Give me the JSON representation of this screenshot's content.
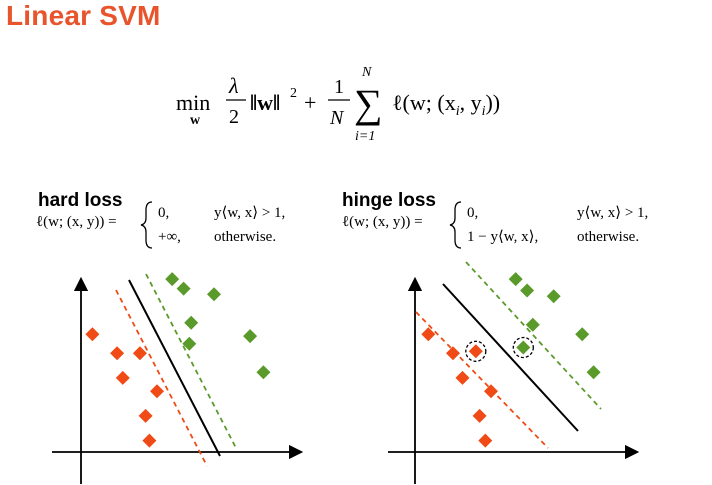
{
  "title": "Linear SVM",
  "objective": {
    "min": "min",
    "min_sub": "w",
    "lambda": "λ",
    "two": "2",
    "norm": "‖w‖",
    "sq": "2",
    "plus": "+",
    "one": "1",
    "N": "N",
    "sum": "∑",
    "sum_top": "N",
    "sum_bottom": "i=1",
    "loss_term": "ℓ(w; (x",
    "i_sub1": "i",
    "comma_y": ", y",
    "i_sub2": "i",
    "close": "))"
  },
  "panels": [
    {
      "title": "hard loss",
      "lhs": "ℓ(w; (x, y)) =",
      "case1_value": "0,",
      "case1_cond": "y⟨w, x⟩ > 1,",
      "case2_value": "+∞,",
      "case2_cond": "otherwise."
    },
    {
      "title": "hinge loss",
      "lhs": "ℓ(w; (x, y)) =",
      "case1_value": "0,",
      "case1_cond": "y⟨w, x⟩ > 1,",
      "case2_value": "1 − y⟨w, x⟩,",
      "case2_cond": "otherwise."
    }
  ],
  "colors": {
    "title": "#e8542c",
    "negative_class": "#f04a16",
    "positive_class": "#5a9a2a",
    "boundary": "#000000"
  },
  "diagram_data": {
    "hard_plot": {
      "negative_points": [
        [
          0.06,
          0.62
        ],
        [
          0.19,
          0.52
        ],
        [
          0.31,
          0.52
        ],
        [
          0.22,
          0.39
        ],
        [
          0.4,
          0.32
        ],
        [
          0.34,
          0.19
        ],
        [
          0.36,
          0.06
        ]
      ],
      "positive_points": [
        [
          0.48,
          0.91
        ],
        [
          0.54,
          0.86
        ],
        [
          0.7,
          0.83
        ],
        [
          0.58,
          0.68
        ],
        [
          0.57,
          0.57
        ],
        [
          0.89,
          0.61
        ],
        [
          0.96,
          0.42
        ]
      ]
    },
    "hinge_plot": {
      "negative_points": [
        [
          0.07,
          0.62
        ],
        [
          0.2,
          0.52
        ],
        [
          0.32,
          0.53
        ],
        [
          0.25,
          0.39
        ],
        [
          0.4,
          0.32
        ],
        [
          0.34,
          0.19
        ],
        [
          0.37,
          0.06
        ]
      ],
      "positive_points": [
        [
          0.53,
          0.91
        ],
        [
          0.59,
          0.85
        ],
        [
          0.73,
          0.82
        ],
        [
          0.62,
          0.67
        ],
        [
          0.57,
          0.55
        ],
        [
          0.88,
          0.62
        ],
        [
          0.94,
          0.42
        ]
      ],
      "support_vectors": [
        [
          0.32,
          0.53
        ],
        [
          0.57,
          0.55
        ]
      ]
    }
  }
}
